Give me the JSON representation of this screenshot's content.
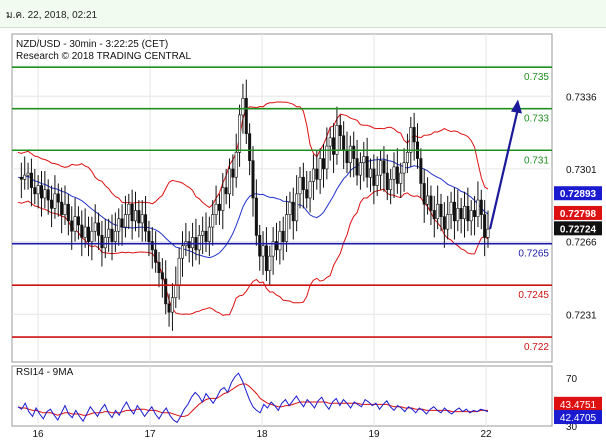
{
  "header": {
    "datetime": "ม.ค. 22, 2018, 02:21"
  },
  "chart_data": [
    {
      "type": "candlestick",
      "title": "NZD/USD - 30min - 3:22:25 (CET)",
      "subtitle": "Research © 2018 TRADING CENTRAL",
      "ylim": [
        0.7208,
        0.7366
      ],
      "y_ticks": [
        "0.7336",
        "0.7301",
        "0.7266",
        "0.7231"
      ],
      "x_ticks": [
        "16",
        "17",
        "18",
        "19",
        "22"
      ],
      "levels": [
        {
          "label": "0.735",
          "value": 0.735,
          "color": "#1f8f1f"
        },
        {
          "label": "0.733",
          "value": 0.733,
          "color": "#1f8f1f"
        },
        {
          "label": "0.731",
          "value": 0.731,
          "color": "#1f8f1f"
        },
        {
          "label": "0.7265",
          "value": 0.7265,
          "color": "#1a1aa8"
        },
        {
          "label": "0.7245",
          "value": 0.7245,
          "color": "#cc1111"
        },
        {
          "label": "0.722",
          "value": 0.722,
          "color": "#cc1111"
        }
      ],
      "price_tags": [
        {
          "label": "0.72893",
          "value": 0.72893,
          "color": "#1a1ad0"
        },
        {
          "label": "0.72798",
          "value": 0.72798,
          "color": "#dd1111"
        },
        {
          "label": "0.72724",
          "value": 0.72724,
          "color": "#111111"
        }
      ],
      "close_path": [
        0.7297,
        0.7296,
        0.7298,
        0.7299,
        0.7292,
        0.7289,
        0.7293,
        0.7287,
        0.7291,
        0.7286,
        0.7282,
        0.7289,
        0.7285,
        0.7279,
        0.7284,
        0.7276,
        0.7271,
        0.7278,
        0.7274,
        0.7268,
        0.7273,
        0.7266,
        0.7271,
        0.7275,
        0.7269,
        0.7263,
        0.7268,
        0.7272,
        0.7266,
        0.7271,
        0.7277,
        0.7273,
        0.7279,
        0.7284,
        0.7276,
        0.7281,
        0.7275,
        0.7279,
        0.7271,
        0.7266,
        0.7262,
        0.7256,
        0.7251,
        0.7248,
        0.7236,
        0.7232,
        0.7239,
        0.7245,
        0.7258,
        0.7264,
        0.7266,
        0.7263,
        0.7268,
        0.7262,
        0.7269,
        0.7271,
        0.7266,
        0.7273,
        0.7279,
        0.7284,
        0.7281,
        0.7292,
        0.7289,
        0.7301,
        0.7297,
        0.7309,
        0.7327,
        0.7335,
        0.7318,
        0.7305,
        0.7287,
        0.7269,
        0.7259,
        0.7264,
        0.7252,
        0.7259,
        0.7266,
        0.7262,
        0.7271,
        0.7266,
        0.7279,
        0.7285,
        0.7276,
        0.7289,
        0.7297,
        0.7291,
        0.7287,
        0.7295,
        0.7301,
        0.7296,
        0.7306,
        0.7301,
        0.7312,
        0.7316,
        0.7308,
        0.7322,
        0.7317,
        0.731,
        0.7304,
        0.7312,
        0.7306,
        0.7298,
        0.7304,
        0.7307,
        0.7297,
        0.7301,
        0.7293,
        0.7298,
        0.7305,
        0.7299,
        0.7291,
        0.7296,
        0.7302,
        0.7294,
        0.7299,
        0.7304,
        0.7309,
        0.7321,
        0.7314,
        0.7306,
        0.7294,
        0.7284,
        0.7288,
        0.7281,
        0.7277,
        0.7284,
        0.7278,
        0.7272,
        0.7279,
        0.7285,
        0.7276,
        0.7282,
        0.7277,
        0.7283,
        0.7276,
        0.7281,
        0.7278,
        0.7286,
        0.7279,
        0.7268,
        0.7272
      ],
      "forecast_arrow": {
        "from": 0.7272,
        "to": 0.7333
      },
      "rsi": {
        "label": "RSI14 - 9MA",
        "ylim": [
          30,
          80
        ],
        "y_ticks": [
          "70",
          "30"
        ],
        "tags": [
          {
            "label": "43.4751",
            "value": 43.4751,
            "color": "#dd1111"
          },
          {
            "label": "42.4705",
            "value": 42.4705,
            "color": "#1a1ad0"
          }
        ],
        "values": [
          46,
          44,
          49,
          42,
          38,
          45,
          40,
          36,
          42,
          44,
          39,
          35,
          41,
          47,
          40,
          37,
          43,
          38,
          34,
          40,
          46,
          42,
          38,
          44,
          48,
          41,
          37,
          43,
          39,
          45,
          50,
          44,
          40,
          47,
          43,
          38,
          42,
          46,
          40,
          36,
          41,
          45,
          39,
          35,
          33,
          38,
          44,
          48,
          54,
          58,
          55,
          50,
          57,
          53,
          49,
          54,
          60,
          62,
          58,
          66,
          71,
          74,
          68,
          60,
          52,
          46,
          43,
          41,
          48,
          45,
          50,
          47,
          43,
          49,
          52,
          47,
          51,
          55,
          50,
          46,
          52,
          49,
          45,
          51,
          54,
          48,
          44,
          50,
          53,
          47,
          52,
          49,
          45,
          50,
          48,
          46,
          52,
          50,
          47,
          49,
          44,
          48,
          51,
          46,
          43,
          47,
          45,
          42,
          46,
          44,
          41,
          45,
          43,
          40,
          44,
          46,
          43,
          41,
          45,
          42,
          40,
          43,
          45,
          42,
          44,
          41,
          43,
          42,
          44,
          43,
          42
        ],
        "ma": [
          46,
          45,
          45,
          44,
          43,
          43,
          42,
          41,
          41,
          41,
          40,
          39,
          40,
          41,
          41,
          40,
          40,
          40,
          39,
          39,
          40,
          41,
          41,
          41,
          42,
          42,
          41,
          41,
          41,
          42,
          43,
          43,
          43,
          44,
          44,
          44,
          43,
          43,
          43,
          42,
          41,
          41,
          41,
          40,
          39,
          38,
          38,
          39,
          42,
          45,
          48,
          50,
          52,
          53,
          53,
          53,
          55,
          57,
          58,
          60,
          62,
          64,
          65,
          65,
          63,
          60,
          57,
          53,
          51,
          49,
          48,
          47,
          46,
          46,
          47,
          47,
          48,
          49,
          50,
          50,
          50,
          50,
          50,
          50,
          50,
          50,
          49,
          49,
          49,
          49,
          49,
          49,
          49,
          49,
          49,
          48,
          48,
          48,
          48,
          48,
          48,
          48,
          48,
          47,
          46,
          46,
          46,
          45,
          45,
          45,
          44,
          44,
          44,
          43,
          43,
          43,
          43,
          43,
          43,
          43,
          42,
          42,
          42,
          42,
          42,
          42,
          42,
          42,
          43,
          43,
          43
        ]
      }
    }
  ]
}
